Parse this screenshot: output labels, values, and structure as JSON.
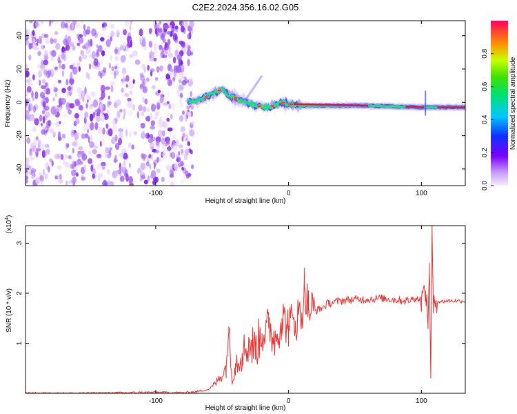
{
  "title": "C2E2.2024.356.16.02.G05",
  "chart_data": [
    {
      "type": "heatmap",
      "xlabel": "Height of straight line (km)",
      "ylabel": "Frequency (Hz)",
      "xlim": [
        -198,
        133
      ],
      "ylim": [
        -50,
        49
      ],
      "xticks": [
        -100,
        0,
        100
      ],
      "yticks": [
        -40,
        -20,
        0,
        20,
        40
      ],
      "colorbar": {
        "label": "Normalized spectral amplitude",
        "range": [
          0,
          1
        ],
        "ticks": [
          0.0,
          0.2,
          0.4,
          0.6,
          0.8
        ]
      },
      "noise_region_x": [
        -198,
        -72
      ],
      "signal_ridge": [
        {
          "x": -75,
          "freq": 0
        },
        {
          "x": -65,
          "freq": 2
        },
        {
          "x": -55,
          "freq": 6
        },
        {
          "x": -50,
          "freq": 8
        },
        {
          "x": -45,
          "freq": 4
        },
        {
          "x": -35,
          "freq": 1
        },
        {
          "x": -25,
          "freq": -2
        },
        {
          "x": -15,
          "freq": -3
        },
        {
          "x": -5,
          "freq": 0
        },
        {
          "x": 0,
          "freq": -1
        },
        {
          "x": 10,
          "freq": -2
        },
        {
          "x": 60,
          "freq": -2
        },
        {
          "x": 100,
          "freq": -3
        },
        {
          "x": 133,
          "freq": -3
        }
      ]
    },
    {
      "type": "line",
      "xlabel": "Height of straight line (km)",
      "ylabel": "SNR (10 * v/v)",
      "yunit": "(x10^4)",
      "ylim_x1e4": [
        0,
        3.35
      ],
      "xlim": [
        -198,
        133
      ],
      "xticks": [
        -100,
        0,
        100
      ],
      "yticks": [
        1,
        2,
        3
      ],
      "series": [
        {
          "color": "#e8302e",
          "x": [
            -198,
            -150,
            -100,
            -80,
            -70,
            -60,
            -55,
            -47,
            -45,
            -43,
            -40,
            -35,
            -30,
            -25,
            -20,
            -15,
            -10,
            -5,
            0,
            5,
            10,
            12,
            15,
            20,
            25,
            30,
            40,
            50,
            60,
            70,
            80,
            90,
            95,
            100,
            103,
            105,
            106,
            107,
            108,
            109,
            110,
            115,
            120,
            133
          ],
          "y": [
            0.0,
            0.0,
            0.02,
            0.01,
            0.03,
            0.08,
            0.2,
            0.5,
            1.32,
            0.4,
            0.6,
            0.8,
            1.0,
            0.9,
            1.2,
            1.3,
            1.1,
            1.5,
            1.35,
            1.45,
            1.6,
            2.15,
            1.7,
            1.65,
            1.7,
            1.8,
            1.85,
            1.88,
            1.88,
            1.9,
            1.87,
            1.85,
            1.9,
            1.87,
            2.05,
            1.4,
            2.6,
            0.3,
            3.3,
            1.6,
            1.85,
            1.83,
            1.85,
            1.84
          ]
        }
      ]
    }
  ]
}
